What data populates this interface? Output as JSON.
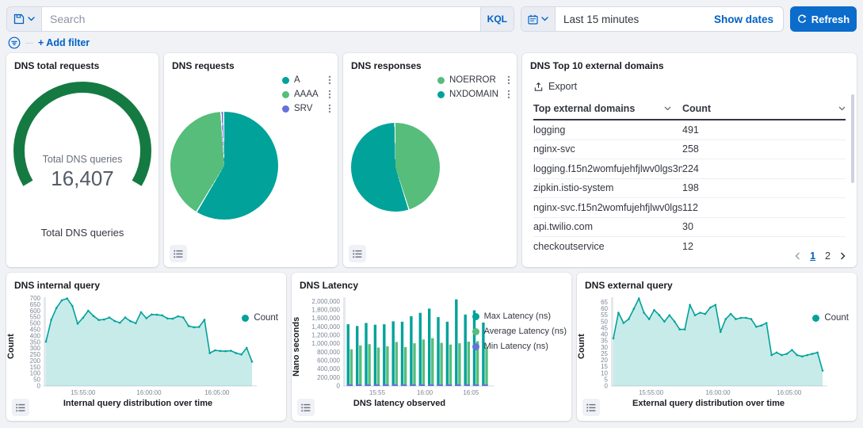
{
  "header": {
    "search_placeholder": "Search",
    "kql_label": "KQL",
    "time_range": "Last 15 minutes",
    "show_dates_label": "Show dates",
    "refresh_label": "Refresh",
    "add_filter_label": "+ Add filter"
  },
  "colors": {
    "teal": "#00a29a",
    "green": "#57bd7b",
    "purple": "#6671dc",
    "gauge_green": "#157a42",
    "primary_blue": "#0b6ccb",
    "link_blue": "#0061c5"
  },
  "icons": [
    "save-icon",
    "chevron-down-icon",
    "calendar-icon",
    "refresh-icon",
    "filter-icon",
    "export-icon",
    "kebab-menu-icon",
    "legend-list-icon",
    "sort-chevron-icon",
    "prev-page-icon",
    "next-page-icon"
  ],
  "panels": {
    "top_domains": {
      "title": "DNS Top 10 external domains",
      "export_label": "Export",
      "columns": [
        "Top external domains",
        "Count"
      ],
      "rows": [
        [
          "logging",
          "491"
        ],
        [
          "nginx-svc",
          "258"
        ],
        [
          "logging.f15n2womfujehfjlwv0lgs3nog....",
          "224"
        ],
        [
          "zipkin.istio-system",
          "198"
        ],
        [
          "nginx-svc.f15n2womfujehfjlwv0lgs3no...",
          "112"
        ],
        [
          "api.twilio.com",
          "30"
        ],
        [
          "checkoutservice",
          "12"
        ]
      ],
      "pagination": [
        "1",
        "2"
      ]
    }
  },
  "chart_data": [
    {
      "type": "gauge",
      "title": "DNS total requests",
      "center_label": "Total DNS queries",
      "value": 16407,
      "display_value": "16,407",
      "bottom_label": "Total DNS queries",
      "color": "#157a42"
    },
    {
      "type": "pie",
      "title": "DNS requests",
      "slices": [
        {
          "label": "A",
          "pct": 58.8,
          "color": "#00a29a"
        },
        {
          "label": "AAAA",
          "pct": 40.4,
          "color": "#57bd7b"
        },
        {
          "label": "SRV",
          "pct": 0.8,
          "color": "#6671dc"
        }
      ]
    },
    {
      "type": "pie",
      "title": "DNS responses",
      "slices": [
        {
          "label": "NOERROR",
          "pct": 45.3,
          "color": "#57bd7b"
        },
        {
          "label": "NXDOMAIN",
          "pct": 54.7,
          "color": "#00a29a"
        }
      ]
    },
    {
      "type": "area",
      "title": "DNS internal query",
      "ylabel": "Count",
      "xlabel": "Internal query distribution over time",
      "legend": [
        "Count"
      ],
      "color": "#00a29a",
      "ylim": [
        0,
        710
      ],
      "yticks_max": 700,
      "ytick_step": 50,
      "x_ticks": [
        {
          "pos": 0.18,
          "label": "15:55:00"
        },
        {
          "pos": 0.5,
          "label": "16:00:00"
        },
        {
          "pos": 0.83,
          "label": "16:05:00"
        }
      ],
      "values": [
        355,
        530,
        625,
        685,
        700,
        640,
        498,
        545,
        602,
        560,
        528,
        532,
        548,
        520,
        505,
        548,
        518,
        502,
        590,
        542,
        572,
        570,
        565,
        540,
        538,
        558,
        548,
        480,
        470,
        473,
        530,
        263,
        285,
        280,
        278,
        282,
        263,
        252,
        305,
        195
      ]
    },
    {
      "type": "bar",
      "title": "DNS Latency",
      "ylabel": "Nano seconds",
      "xlabel": "DNS latency observed",
      "ylim": [
        0,
        2100000
      ],
      "yticks_max": 2000000,
      "ytick_step": 200000,
      "x_ticks": [
        {
          "pos": 0.22,
          "label": "15:55"
        },
        {
          "pos": 0.55,
          "label": "16:00"
        },
        {
          "pos": 0.87,
          "label": "16:05"
        }
      ],
      "series": [
        {
          "name": "Max Latency (ns)",
          "color": "#00a29a",
          "values": [
            1460000,
            1420000,
            1490000,
            1450000,
            1460000,
            1530000,
            1520000,
            1650000,
            1730000,
            1830000,
            1630000,
            1520000,
            2050000,
            1690000,
            1790000,
            1500000
          ]
        },
        {
          "name": "Average Latency (ns)",
          "color": "#57bd7b",
          "values": [
            870000,
            960000,
            990000,
            910000,
            940000,
            1040000,
            920000,
            1010000,
            1100000,
            1130000,
            1020000,
            980000,
            1010000,
            1050000,
            1060000,
            910000
          ]
        },
        {
          "name": "Min Latency (ns)",
          "color": "#6671dc",
          "values": [
            10000,
            10000,
            10000,
            10000,
            10000,
            10000,
            10000,
            10000,
            10000,
            10000,
            10000,
            10000,
            10000,
            10000,
            10000,
            10000
          ]
        }
      ]
    },
    {
      "type": "area",
      "title": "DNS external query",
      "ylabel": "Count",
      "xlabel": "External query distribution over time",
      "legend": [
        "Count"
      ],
      "color": "#00a29a",
      "ylim": [
        0,
        69
      ],
      "yticks_max": 65,
      "ytick_step": 5,
      "x_ticks": [
        {
          "pos": 0.18,
          "label": "15:55:00"
        },
        {
          "pos": 0.5,
          "label": "16:00:00"
        },
        {
          "pos": 0.84,
          "label": "16:05:00"
        }
      ],
      "values": [
        37,
        57,
        49,
        52,
        60,
        68,
        57,
        52,
        59,
        55,
        50,
        55,
        50,
        44,
        44,
        63,
        55,
        57,
        56,
        61,
        63,
        42,
        52,
        56,
        52,
        53,
        53,
        52,
        46,
        47,
        49,
        24,
        26,
        24,
        25,
        28,
        24,
        23,
        24,
        25,
        26,
        12
      ]
    }
  ]
}
